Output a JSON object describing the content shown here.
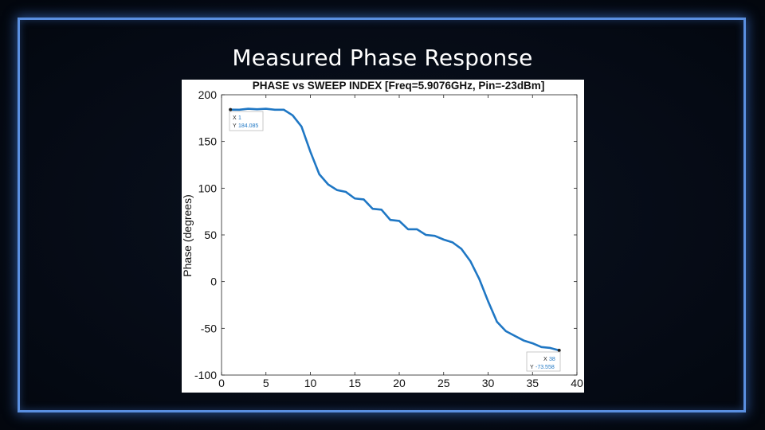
{
  "slide": {
    "title": "Measured Phase Response"
  },
  "colors": {
    "line": "#1f77c4",
    "frame": "#5a8fe0",
    "background": "#050a14"
  },
  "chart_data": {
    "type": "line",
    "title": "PHASE vs SWEEP INDEX [Freq=5.9076GHz, Pin=-23dBm]",
    "xlabel": "",
    "ylabel": "Phase (degrees)",
    "xlim": [
      0,
      40
    ],
    "ylim": [
      -100,
      200
    ],
    "xticks": [
      0,
      5,
      10,
      15,
      20,
      25,
      30,
      35,
      40
    ],
    "yticks": [
      -100,
      -50,
      0,
      50,
      100,
      150,
      200
    ],
    "grid": false,
    "series": [
      {
        "x": [
          1,
          2,
          3,
          4,
          5,
          6,
          7,
          8,
          9,
          10,
          11,
          12,
          13,
          14,
          15,
          16,
          17,
          18,
          19,
          20,
          21,
          22,
          23,
          24,
          25,
          26,
          27,
          28,
          29,
          30,
          31,
          32,
          33,
          34,
          35,
          36,
          37,
          38
        ],
        "values": [
          184.085,
          184,
          185,
          184.5,
          185,
          184,
          184,
          178,
          166,
          139,
          115,
          104,
          98,
          96,
          89,
          88,
          78,
          77,
          66,
          65,
          56,
          56,
          50,
          49,
          45,
          42,
          35,
          22,
          3,
          -21,
          -43,
          -53,
          -58,
          -63,
          -66,
          -70,
          -71,
          -73.558
        ]
      }
    ],
    "datatips": [
      {
        "x_label": "X",
        "x_value": "1",
        "y_label": "Y",
        "y_value": "184.085"
      },
      {
        "x_label": "X",
        "x_value": "38",
        "y_label": "Y",
        "y_value": "-73.558"
      }
    ]
  }
}
